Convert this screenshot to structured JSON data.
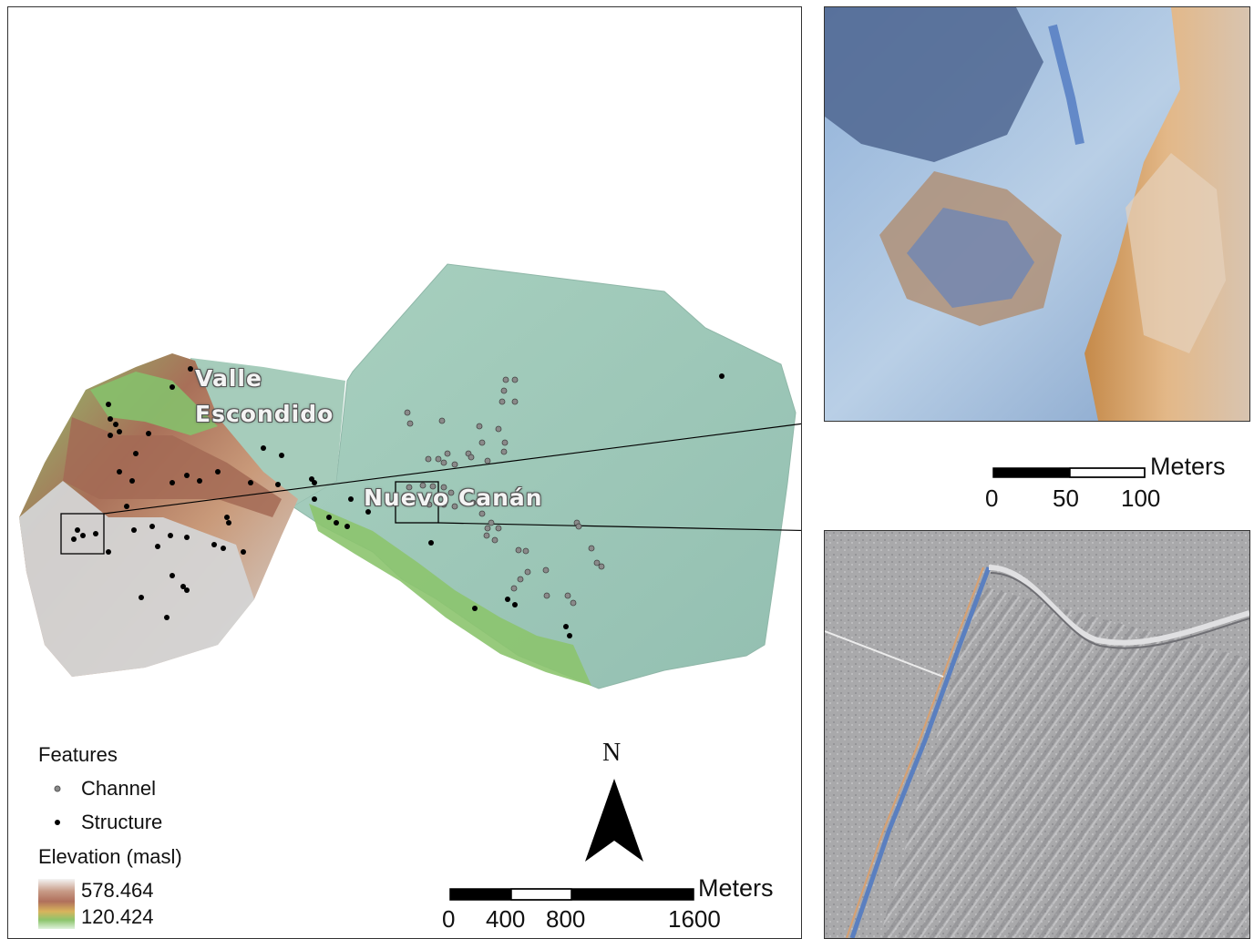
{
  "map": {
    "places": {
      "valle_line1": "Valle",
      "valle_line2": "Escondido",
      "nuevo": "Nuevo Canán"
    },
    "north_label": "N",
    "legend": {
      "features_title": "Features",
      "channel_label": "Channel",
      "structure_label": "Structure",
      "elevation_title": "Elevation (masl)",
      "elevation_max": "578.464",
      "elevation_min": "120.424"
    },
    "main_scalebar": {
      "unit": "Meters",
      "ticks": [
        "0",
        "400",
        "800",
        "1600"
      ]
    },
    "inset_scalebar": {
      "unit": "Meters",
      "ticks": [
        "0",
        "50",
        "100"
      ]
    },
    "colors": {
      "plain": "#9ec7b8",
      "highland_green": "#7fbf6a",
      "highland_red": "#a8705a",
      "highland_gray": "#d8d8d8",
      "channel_dot": "#8a8a8a",
      "structure_dot": "#000000"
    }
  }
}
